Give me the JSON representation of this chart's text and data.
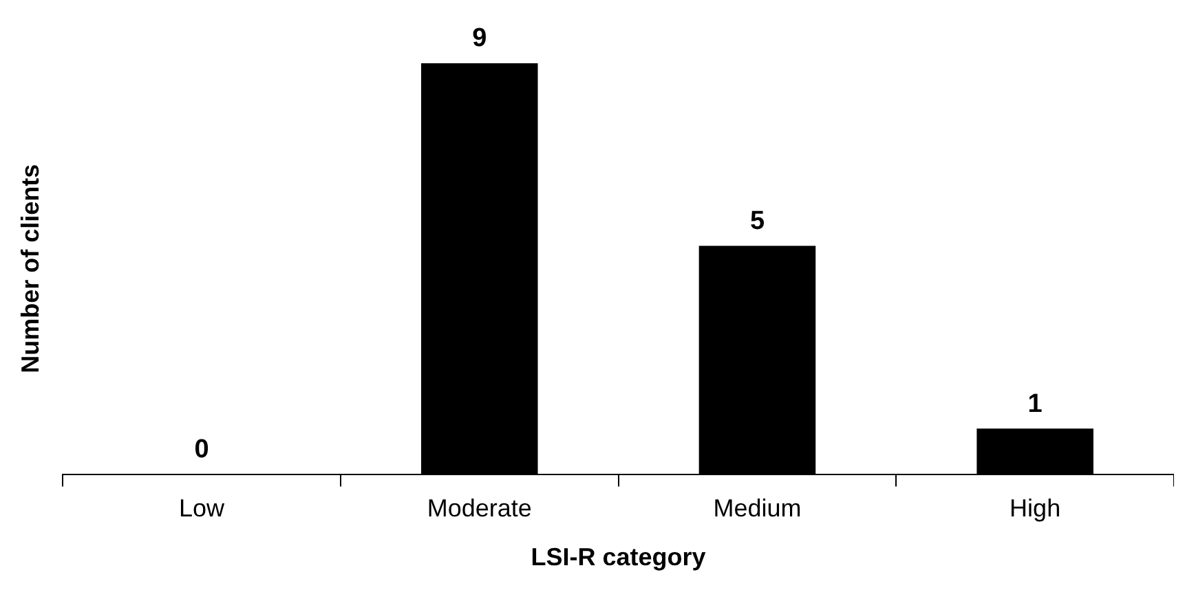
{
  "chart_data": {
    "type": "bar",
    "xlabel": "LSI-R category",
    "ylabel": "Number of clients",
    "categories": [
      "Low",
      "Moderate",
      "Medium",
      "High"
    ],
    "values": [
      0,
      9,
      5,
      1
    ],
    "color": "#000000",
    "data_labels": true,
    "grid": false,
    "legend": false
  }
}
